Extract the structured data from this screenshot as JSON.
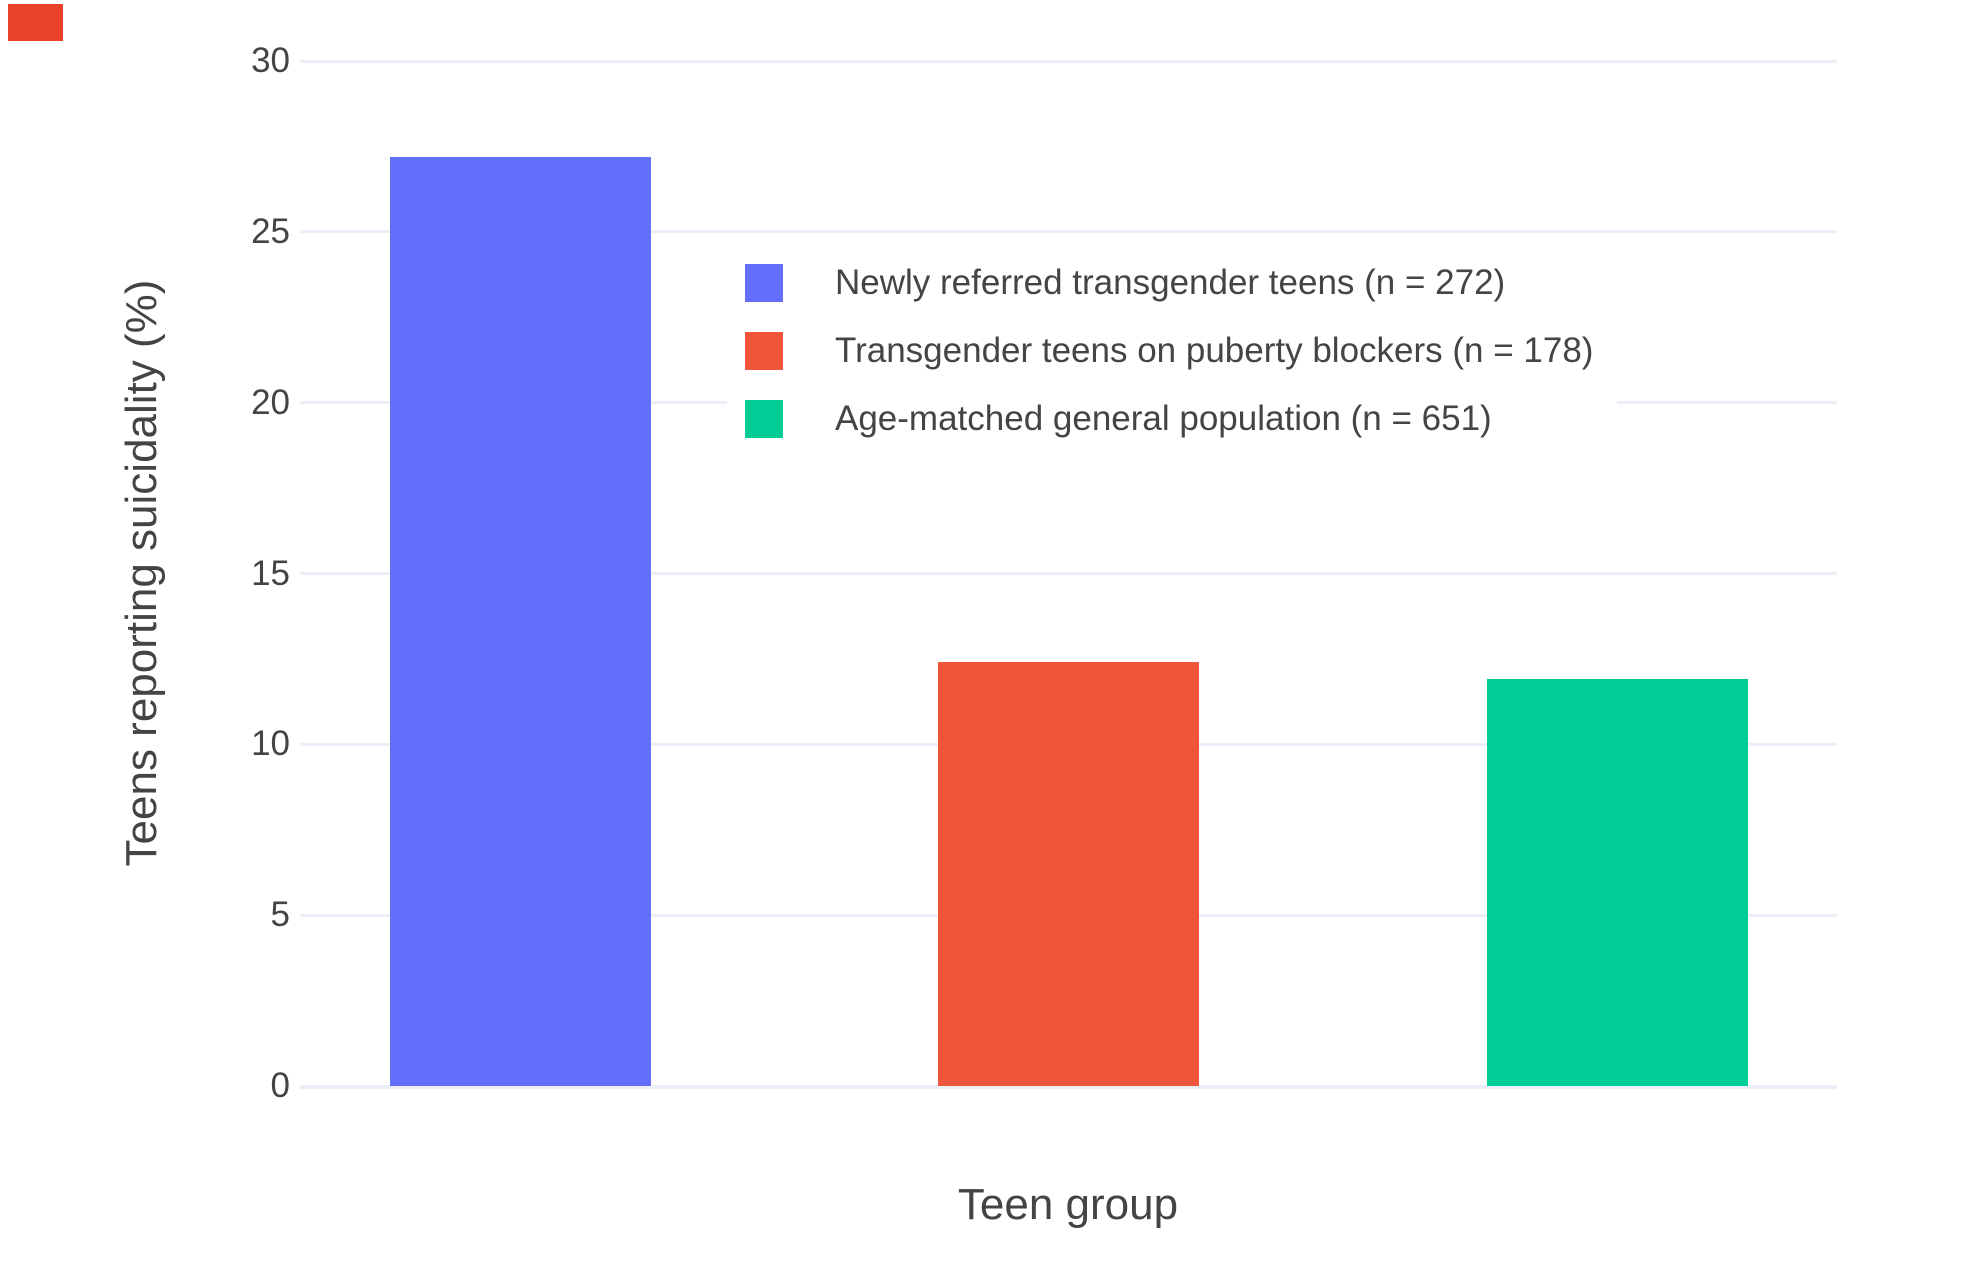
{
  "page": {
    "background_color": "#ffffff",
    "text_color": "#444444",
    "corner_marker_color": "#e8432a"
  },
  "chart_data": {
    "type": "bar",
    "title": "",
    "xlabel": "Teen group",
    "ylabel": "Teens reporting suicidality (%)",
    "categories": [
      "Newly referred transgender teens",
      "Transgender teens on puberty blockers",
      "Age-matched general population"
    ],
    "series": [
      {
        "name": "Newly referred transgender teens (n = 272)",
        "value": 27.2,
        "color": "#636EFA"
      },
      {
        "name": "Transgender teens on puberty blockers (n = 178)",
        "value": 12.4,
        "color": "#EF553B"
      },
      {
        "name": "Age-matched general population (n = 651)",
        "value": 11.9,
        "color": "#00CC96"
      }
    ],
    "yticks": [
      0,
      5,
      10,
      15,
      20,
      25,
      30
    ],
    "ylim": [
      0,
      30
    ],
    "grid": true,
    "gridline_color": "#EBF0F8",
    "legend_position": "top-center",
    "x_tick_labels_visible": false
  }
}
